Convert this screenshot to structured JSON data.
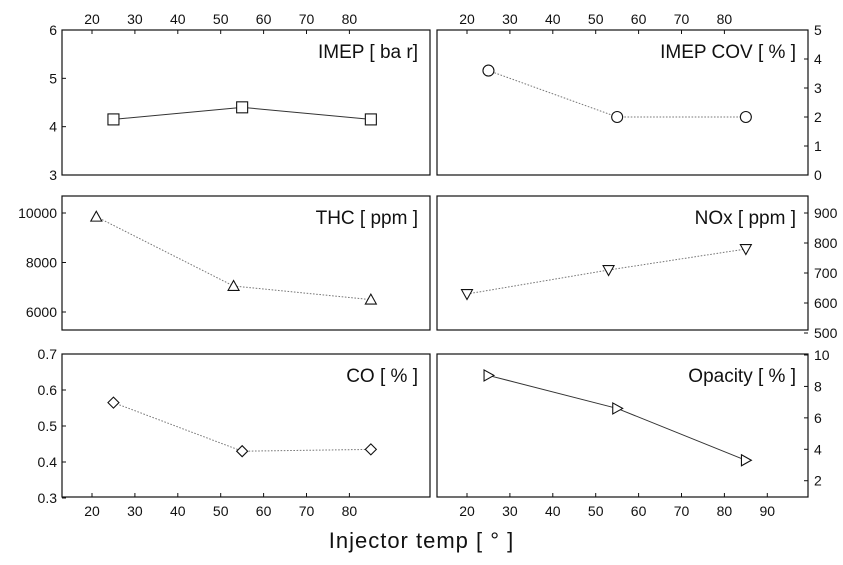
{
  "figure": {
    "xlabel": "Injector temp [ ° ]"
  },
  "chart_data": [
    {
      "type": "line",
      "title": "IMEP [ ba r]",
      "marker": "square",
      "linestyle": "solid",
      "x": [
        25,
        55,
        85
      ],
      "y": [
        4.15,
        4.4,
        4.15
      ],
      "xlim": [
        15,
        90
      ],
      "ylim": [
        3,
        6
      ],
      "xticks": [
        20,
        30,
        40,
        50,
        60,
        70,
        80
      ],
      "yticks": [
        3,
        4,
        5,
        6
      ],
      "xaxis": "top",
      "yaxis": "left"
    },
    {
      "type": "line",
      "title": "IMEP COV [ % ]",
      "marker": "circle",
      "linestyle": "dotted",
      "x": [
        25,
        55,
        85
      ],
      "y": [
        3.6,
        2.0,
        2.0
      ],
      "xlim": [
        15,
        90
      ],
      "ylim": [
        0,
        5
      ],
      "xticks": [
        20,
        30,
        40,
        50,
        60,
        70,
        80
      ],
      "yticks": [
        0,
        1,
        2,
        3,
        4,
        5
      ],
      "xaxis": "top",
      "yaxis": "right"
    },
    {
      "type": "line",
      "title": "THC [ ppm ]",
      "marker": "triangle-up",
      "linestyle": "dotted",
      "x": [
        21,
        53,
        85
      ],
      "y": [
        9850,
        7050,
        6500
      ],
      "xlim": [
        15,
        90
      ],
      "ylim": [
        5400,
        10600
      ],
      "xticks": [],
      "yticks": [
        6000,
        8000,
        10000
      ],
      "xaxis": "none",
      "yaxis": "left"
    },
    {
      "type": "line",
      "title": "NOx [ ppm ]",
      "marker": "triangle-down",
      "linestyle": "dotted",
      "x": [
        20,
        53,
        85
      ],
      "y": [
        630,
        710,
        780
      ],
      "xlim": [
        15,
        90
      ],
      "ylim": [
        500,
        950
      ],
      "xticks": [],
      "yticks": [
        500,
        600,
        700,
        800,
        900
      ],
      "xaxis": "none",
      "yaxis": "right"
    },
    {
      "type": "line",
      "title": "CO [ % ]",
      "marker": "diamond",
      "linestyle": "dotted",
      "x": [
        25,
        55,
        85
      ],
      "y": [
        0.565,
        0.43,
        0.435
      ],
      "xlim": [
        15,
        90
      ],
      "ylim": [
        0.3,
        0.7
      ],
      "xticks": [
        20,
        30,
        40,
        50,
        60,
        70,
        80
      ],
      "yticks": [
        0.3,
        0.4,
        0.5,
        0.6,
        0.7
      ],
      "xaxis": "bottom",
      "yaxis": "left"
    },
    {
      "type": "line",
      "title": "Opacity [ % ]",
      "marker": "triangle-right",
      "linestyle": "solid",
      "x": [
        25,
        55,
        85
      ],
      "y": [
        8.7,
        6.6,
        3.3
      ],
      "xlim": [
        15,
        90
      ],
      "ylim": [
        1,
        10.5
      ],
      "xticks": [
        20,
        30,
        40,
        50,
        60,
        70,
        80,
        90
      ],
      "yticks": [
        2,
        4,
        6,
        8,
        10
      ],
      "xaxis": "bottom",
      "yaxis": "right"
    }
  ]
}
